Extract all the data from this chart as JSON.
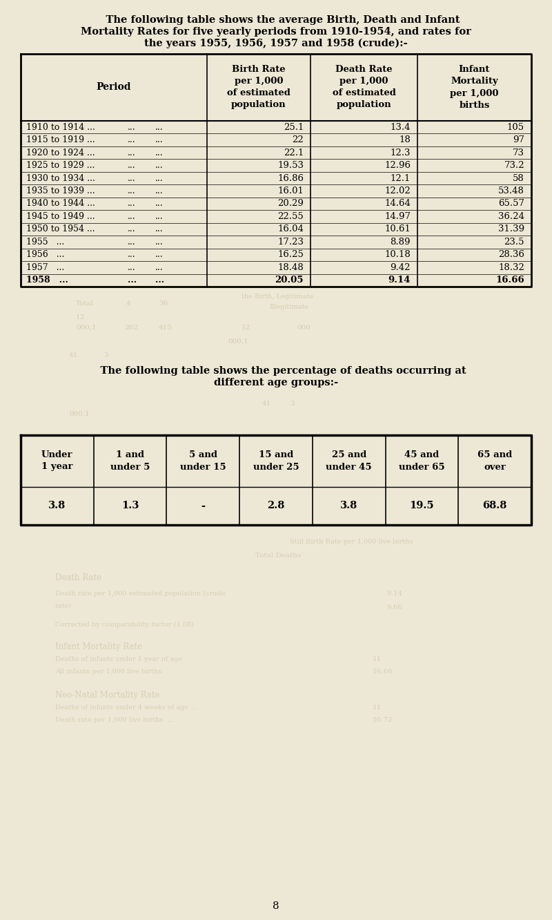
{
  "bg_color": "#ede8d5",
  "text_color": "#1a1a1a",
  "title1_line1": "    The following table shows the average Birth, Death and Infant",
  "title1_line2": "Mortality Rates for five yearly periods from 1910-1954, and rates for",
  "title1_line3": "the years 1955, 1956, 1957 and 1958 (crude):-",
  "table1_col_headers": [
    "Period",
    "Birth Rate\nper 1,000\nof estimated\npopulation",
    "Death Rate\nper 1,000\nof estimated\npopulation",
    "Infant\nMortality\nper 1,000\nbirths"
  ],
  "table1_rows": [
    [
      "1910 to 1914 ...",
      "...",
      "...",
      "25.1",
      "13.4",
      "105"
    ],
    [
      "1915 to 1919 ...",
      "...",
      "...",
      "22",
      "18",
      "97"
    ],
    [
      "1920 to 1924 ...",
      "...",
      "...",
      "22.1",
      "12.3",
      "73"
    ],
    [
      "1925 to 1929 ...",
      "...",
      "...",
      "19.53",
      "12.96",
      "73.2"
    ],
    [
      "1930 to 1934 ...",
      "...",
      "...",
      "16.86",
      "12.1",
      "58"
    ],
    [
      "1935 to 1939 ...",
      "...",
      "...",
      "16.01",
      "12.02",
      "53.48"
    ],
    [
      "1940 to 1944 ...",
      "...",
      "...",
      "20.29",
      "14.64",
      "65.57"
    ],
    [
      "1945 to 1949 ...",
      "...",
      "...",
      "22.55",
      "14.97",
      "36.24"
    ],
    [
      "1950 to 1954 ...",
      "...",
      "...",
      "16.04",
      "10.61",
      "31.39"
    ],
    [
      "1955   ...",
      "...",
      "...",
      "17.23",
      "8.89",
      "23.5"
    ],
    [
      "1956   ...",
      "...",
      "...",
      "16.25",
      "10.18",
      "28.36"
    ],
    [
      "1957   ...",
      "...",
      "...",
      "18.48",
      "9.42",
      "18.32"
    ],
    [
      "1958   ...",
      "...",
      "...",
      "20.05",
      "9.14",
      "16.66"
    ]
  ],
  "table1_bold_last": true,
  "title2_line1": "    The following table shows the percentage of deaths occurring at",
  "title2_line2": "different age groups:-",
  "table2_col_headers": [
    "Under\n1 year",
    "1 and\nunder 5",
    "5 and\nunder 15",
    "15 and\nunder 25",
    "25 and\nunder 45",
    "45 and\nunder 65",
    "65 and\nover"
  ],
  "table2_row": [
    "3.8",
    "1.3",
    "-",
    "2.8",
    "3.8",
    "19.5",
    "68.8"
  ],
  "page_number": "8"
}
